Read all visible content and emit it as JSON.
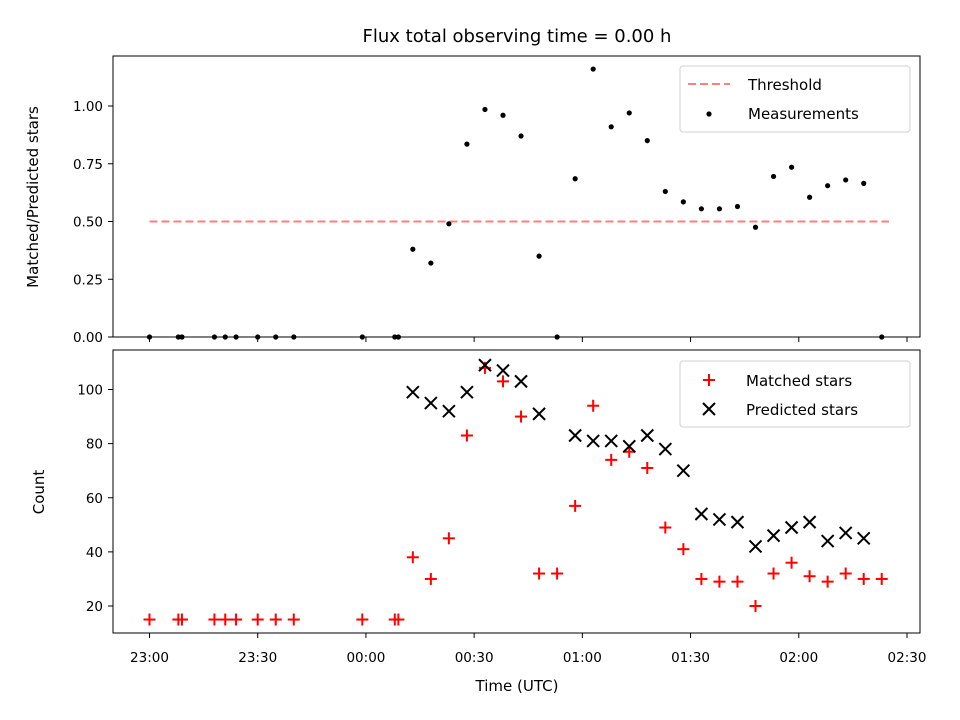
{
  "chart_data": [
    {
      "type": "line+scatter",
      "title": "Flux total observing time = 0.00 h",
      "xlabel": "",
      "ylabel": "Matched/Predicted stars",
      "ylim": [
        0,
        1.2
      ],
      "yticks": [
        "0.00",
        "0.25",
        "0.50",
        "0.75",
        "1.00"
      ],
      "x_time_unit": "UTC",
      "legend_position": "upper right",
      "series": [
        {
          "name": "Threshold",
          "style": "dashed-line",
          "color": "#ff7f7f",
          "x": [
            "23:00",
            "02:25"
          ],
          "y": [
            0.5,
            0.5
          ]
        },
        {
          "name": "Measurements",
          "style": "dots",
          "color": "#000000",
          "x": [
            "23:00",
            "23:08",
            "23:09",
            "23:18",
            "23:21",
            "23:24",
            "23:30",
            "23:35",
            "23:40",
            "23:59",
            "00:08",
            "00:09",
            "00:13",
            "00:18",
            "00:23",
            "00:28",
            "00:33",
            "00:38",
            "00:43",
            "00:48",
            "00:53",
            "00:58",
            "01:03",
            "01:08",
            "01:13",
            "01:18",
            "01:23",
            "01:28",
            "01:33",
            "01:38",
            "01:43",
            "01:48",
            "01:53",
            "01:58",
            "02:03",
            "02:08",
            "02:13",
            "02:18",
            "02:23"
          ],
          "y": [
            0,
            0,
            0,
            0,
            0,
            0,
            0,
            0,
            0,
            0,
            0,
            0,
            0.38,
            0.32,
            0.49,
            0.835,
            0.985,
            0.96,
            0.87,
            0.35,
            0,
            0.685,
            1.16,
            0.91,
            0.97,
            0.85,
            0.63,
            0.585,
            0.555,
            0.555,
            0.565,
            0.475,
            0.695,
            0.735,
            0.605,
            0.655,
            0.68,
            0.665,
            0
          ]
        }
      ]
    },
    {
      "type": "scatter",
      "title": "",
      "xlabel": "Time (UTC)",
      "ylabel": "Count",
      "ylim": [
        10,
        115
      ],
      "yticks": [
        "20",
        "40",
        "60",
        "80",
        "100"
      ],
      "xticks": [
        "23:00",
        "23:30",
        "00:00",
        "00:30",
        "01:00",
        "01:30",
        "02:00",
        "02:30"
      ],
      "legend_position": "upper right",
      "series": [
        {
          "name": "Matched stars",
          "marker": "plus",
          "color": "#ff0000",
          "x": [
            "23:00",
            "23:08",
            "23:09",
            "23:18",
            "23:21",
            "23:24",
            "23:30",
            "23:35",
            "23:40",
            "23:59",
            "00:08",
            "00:09",
            "00:13",
            "00:18",
            "00:23",
            "00:28",
            "00:33",
            "00:38",
            "00:43",
            "00:48",
            "00:53",
            "00:58",
            "01:03",
            "01:08",
            "01:13",
            "01:18",
            "01:23",
            "01:28",
            "01:33",
            "01:38",
            "01:43",
            "01:48",
            "01:53",
            "01:58",
            "02:03",
            "02:08",
            "02:13",
            "02:18",
            "02:23"
          ],
          "y": [
            15,
            15,
            15,
            15,
            15,
            15,
            15,
            15,
            15,
            15,
            15,
            15,
            38,
            30,
            45,
            83,
            108,
            103,
            90,
            32,
            32,
            57,
            94,
            74,
            77,
            71,
            49,
            41,
            30,
            29,
            29,
            20,
            32,
            36,
            31,
            29,
            32,
            30,
            30
          ]
        },
        {
          "name": "Predicted stars",
          "marker": "x",
          "color": "#000000",
          "x": [
            "00:13",
            "00:18",
            "00:23",
            "00:28",
            "00:33",
            "00:38",
            "00:43",
            "00:48",
            "00:58",
            "01:03",
            "01:08",
            "01:13",
            "01:18",
            "01:23",
            "01:28",
            "01:33",
            "01:38",
            "01:43",
            "01:48",
            "01:53",
            "01:58",
            "02:03",
            "02:08",
            "02:13",
            "02:18"
          ],
          "y": [
            99,
            95,
            92,
            99,
            109,
            107,
            103,
            91,
            83,
            81,
            81,
            79,
            83,
            78,
            70,
            54,
            52,
            51,
            42,
            46,
            49,
            51,
            44,
            47,
            45
          ]
        }
      ]
    }
  ]
}
